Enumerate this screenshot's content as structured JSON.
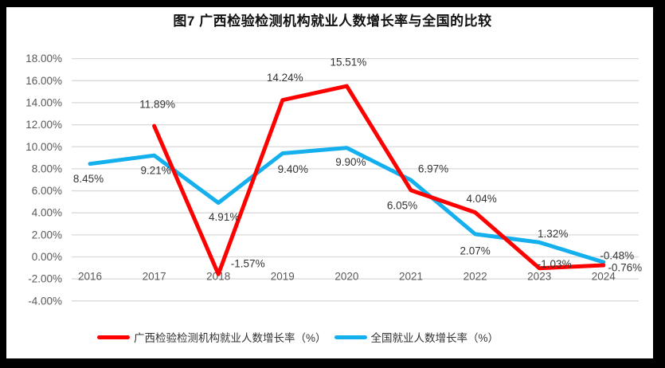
{
  "title": "图7 广西检验检测机构就业人数增长率与全国的比较",
  "chart_data": {
    "type": "line",
    "title": "图7 广西检验检测机构就业人数增长率与全国的比较",
    "categories": [
      "2016",
      "2017",
      "2018",
      "2019",
      "2020",
      "2021",
      "2022",
      "2023",
      "2024"
    ],
    "series": [
      {
        "name": "广西检验检测机构就业人数增长率（%）",
        "key": "guangxi",
        "color": "#FF0000",
        "values": [
          null,
          11.89,
          -1.57,
          14.24,
          15.51,
          6.05,
          4.04,
          -1.03,
          -0.76
        ],
        "labels": [
          "",
          "11.89%",
          "-1.57%",
          "14.24%",
          "15.51%",
          "6.05%",
          "4.04%",
          "-1.03%",
          "-0.76%"
        ]
      },
      {
        "name": "全国就业人数增长率（%）",
        "key": "national",
        "color": "#14B0EE",
        "values": [
          8.45,
          9.21,
          4.91,
          9.4,
          9.9,
          6.97,
          2.07,
          1.32,
          -0.48
        ],
        "labels": [
          "8.45%",
          "9.21%",
          "4.91%",
          "9.40%",
          "9.90%",
          "6.97%",
          "2.07%",
          "1.32%",
          "-0.48%"
        ]
      }
    ],
    "y_axis": {
      "min": -4,
      "max": 18,
      "step": 2,
      "tick_labels": [
        "18.00%",
        "16.00%",
        "14.00%",
        "12.00%",
        "10.00%",
        "8.00%",
        "6.00%",
        "4.00%",
        "2.00%",
        "0.00%",
        "-2.00%",
        "-4.00%"
      ]
    },
    "grid": true,
    "legend_position": "bottom"
  },
  "colors": {
    "series_guangxi": "#FF0000",
    "series_national": "#14B0EE",
    "grid": "#D9D9D9",
    "axis_text": "#595959",
    "label_text": "#333333",
    "frame": "#000000",
    "background": "#FFFFFF"
  }
}
